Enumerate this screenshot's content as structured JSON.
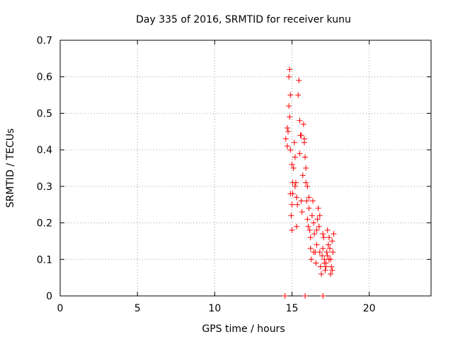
{
  "chart_data": {
    "type": "scatter",
    "title": "Day 335 of 2016, SRMTID for receiver kunu",
    "xlabel": "GPS time / hours",
    "ylabel": "SRMTID / TECUs",
    "xlim": [
      0,
      24
    ],
    "ylim": [
      0,
      0.7
    ],
    "x_ticks": [
      0,
      5,
      10,
      15,
      20
    ],
    "x_tick_labels": [
      "0",
      "5",
      "10",
      "15",
      "20"
    ],
    "y_ticks": [
      0,
      0.1,
      0.2,
      0.3,
      0.4,
      0.5,
      0.6,
      0.7
    ],
    "y_tick_labels": [
      "0",
      "0.1",
      "0.2",
      "0.3",
      "0.4",
      "0.5",
      "0.6",
      "0.7"
    ],
    "grid": true,
    "marker": "plus",
    "color": "#ff0000",
    "series": [
      {
        "x": [
          14.6,
          14.7,
          14.8,
          14.85,
          14.9,
          14.9,
          14.95,
          15.0,
          15.0,
          15.05,
          15.1,
          15.15,
          15.2,
          15.25,
          15.3,
          15.35,
          15.4,
          15.45,
          15.5,
          15.55,
          15.6,
          15.65,
          15.7,
          15.75,
          15.8,
          15.85,
          15.9,
          15.95,
          16.0,
          16.05,
          16.1,
          16.15,
          16.2,
          16.25,
          16.3,
          16.35,
          16.4,
          16.45,
          16.5,
          16.55,
          16.6,
          16.65,
          16.7,
          16.75,
          16.8,
          16.85,
          16.9,
          16.95,
          17.0,
          17.05,
          17.1,
          17.15,
          17.2,
          17.25,
          17.3,
          17.35,
          17.4,
          17.45,
          17.5,
          17.55,
          17.6,
          17.65,
          17.7,
          14.55,
          15.85,
          17.0,
          14.7,
          14.75,
          14.8,
          14.85,
          14.9,
          15.0,
          15.05,
          15.2,
          15.3,
          15.5,
          15.6,
          15.8,
          15.9,
          16.0,
          16.1,
          16.2,
          16.4,
          16.6,
          16.8,
          17.0,
          17.1,
          17.2,
          17.3,
          17.4,
          17.5,
          17.6
        ],
        "y": [
          0.43,
          0.46,
          0.6,
          0.62,
          0.55,
          0.28,
          0.22,
          0.25,
          0.18,
          0.31,
          0.35,
          0.42,
          0.38,
          0.31,
          0.19,
          0.25,
          0.55,
          0.59,
          0.48,
          0.44,
          0.26,
          0.23,
          0.33,
          0.47,
          0.42,
          0.38,
          0.31,
          0.26,
          0.21,
          0.19,
          0.24,
          0.18,
          0.13,
          0.1,
          0.22,
          0.26,
          0.2,
          0.17,
          0.12,
          0.09,
          0.14,
          0.21,
          0.24,
          0.19,
          0.12,
          0.08,
          0.06,
          0.11,
          0.13,
          0.16,
          0.1,
          0.07,
          0.09,
          0.12,
          0.18,
          0.14,
          0.16,
          0.13,
          0.1,
          0.08,
          0.07,
          0.12,
          0.17,
          0.0,
          0.0,
          0.0,
          0.41,
          0.45,
          0.52,
          0.49,
          0.4,
          0.36,
          0.28,
          0.3,
          0.27,
          0.39,
          0.44,
          0.43,
          0.35,
          0.3,
          0.27,
          0.16,
          0.12,
          0.18,
          0.22,
          0.17,
          0.09,
          0.08,
          0.11,
          0.1,
          0.06,
          0.15
        ]
      }
    ]
  }
}
